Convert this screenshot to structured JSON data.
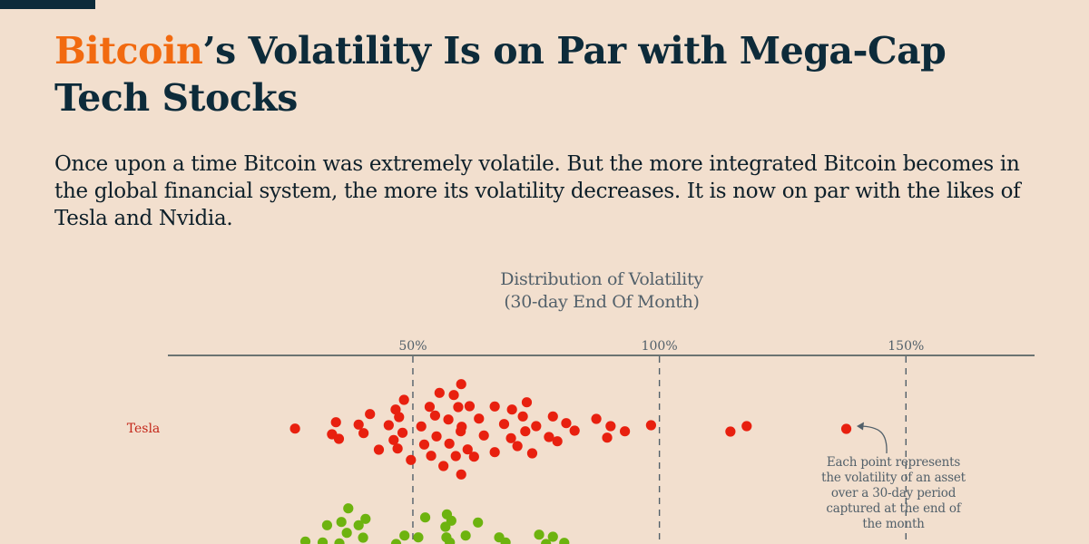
{
  "header": {
    "title_accent": "Bitcoin",
    "title_rest": "’s Volatility Is on Par with Mega-Cap Tech Stocks",
    "subtitle": "Once upon a time Bitcoin was extremely volatile. But the more integrated Bitcoin becomes in the global financial system, the more its volatility decreases. It is now on par with the likes of Tesla and Nvidia.",
    "accent_color": "#f26a10",
    "title_color": "#0d2b3a"
  },
  "chart_data": {
    "type": "scatter",
    "subtype": "beeswarm",
    "title": "Distribution of Volatility",
    "subtitle": "(30-day End Of Month)",
    "xlabel": "",
    "ylabel": "",
    "x_unit": "%",
    "xlim": [
      0,
      175
    ],
    "x_ticks": [
      50,
      100,
      150
    ],
    "x_tick_labels": [
      "50%",
      "100%",
      "150%"
    ],
    "reference_lines": [
      50,
      100,
      150
    ],
    "grid": "vertical dashed at ticks",
    "annotation": {
      "text": "Each point represents the volatility of an asset over a 30-day period captured at the end of the month",
      "points_to_series": "Tesla",
      "points_to_value": 137.9
    },
    "series": [
      {
        "name": "Tesla",
        "label": "Tesla",
        "color": "#e8200f",
        "values": [
          26.1,
          34.4,
          33.6,
          35.0,
          39.0,
          40.0,
          41.3,
          43.1,
          45.1,
          46.5,
          47.2,
          48.2,
          47.9,
          46.1,
          46.9,
          49.6,
          51.7,
          52.3,
          53.7,
          53.4,
          54.5,
          55.4,
          54.8,
          56.2,
          57.2,
          57.4,
          58.3,
          59.8,
          59.2,
          59.9,
          59.7,
          58.7,
          59.8,
          61.1,
          62.4,
          61.5,
          63.4,
          64.4,
          66.6,
          66.6,
          68.5,
          70.1,
          73.1,
          72.3,
          69.9,
          71.2,
          72.8,
          75.0,
          74.2,
          78.4,
          77.6,
          79.3,
          81.1,
          82.8,
          87.2,
          90.1,
          89.4,
          93.0,
          98.3,
          114.4,
          117.7,
          137.9
        ]
      },
      {
        "name": "second-asset",
        "label": "",
        "color": "#6db30f",
        "values": [
          36.9,
          32.6,
          35.5,
          39.0,
          40.4,
          36.6,
          39.9,
          28.2,
          31.7,
          35.1,
          48.3,
          46.6,
          51.1,
          52.5,
          56.9,
          57.8,
          56.6,
          56.8,
          57.5,
          60.7,
          63.2,
          67.5,
          68.8,
          75.6,
          78.4,
          77.0,
          80.7
        ]
      }
    ]
  }
}
